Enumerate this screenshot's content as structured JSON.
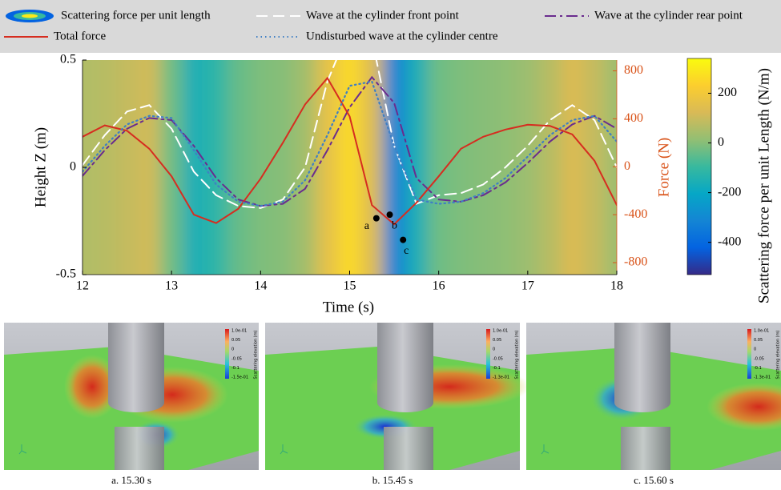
{
  "chart_data": {
    "type": "line",
    "xlabel": "Time (s)",
    "ylabel": "Height Z (m)",
    "y2label": "Force (N)",
    "y2color": "#d95319",
    "legend": "top",
    "x": [
      12,
      12.25,
      12.5,
      12.75,
      13,
      13.25,
      13.5,
      13.75,
      14,
      14.25,
      14.5,
      14.75,
      15,
      15.25,
      15.5,
      15.75,
      16,
      16.25,
      16.5,
      16.75,
      17,
      17.25,
      17.5,
      17.75,
      18
    ],
    "xlim": [
      12,
      18
    ],
    "xticks": [
      12,
      13,
      14,
      15,
      16,
      17,
      18
    ],
    "ylim": [
      -0.5,
      0.5
    ],
    "yticks": [
      -0.5,
      0,
      0.5
    ],
    "y2lim": [
      -900,
      890
    ],
    "y2ticks": [
      -800,
      -400,
      0,
      400,
      800
    ],
    "field": {
      "name": "Scattering force per unit length",
      "label": "Scattering force per unit Length (N/m)",
      "colormap": "parula",
      "values": [
        60,
        70,
        90,
        110,
        -30,
        -160,
        -120,
        -40,
        -10,
        0,
        40,
        160,
        260,
        140,
        -320,
        -160,
        -30,
        -10,
        0,
        10,
        30,
        70,
        130,
        90,
        30
      ],
      "clim": [
        -530,
        340
      ],
      "cticks": [
        -400,
        -200,
        0,
        200
      ]
    },
    "series": [
      {
        "name": "Wave at the cylinder front point",
        "color": "#ffffff",
        "linestyle": "dashed",
        "axis": "y",
        "values": [
          0.01,
          0.15,
          0.26,
          0.29,
          0.18,
          -0.02,
          -0.13,
          -0.18,
          -0.19,
          -0.15,
          0.0,
          0.4,
          0.65,
          0.6,
          0.1,
          -0.17,
          -0.13,
          -0.12,
          -0.08,
          0.0,
          0.1,
          0.22,
          0.29,
          0.22,
          0.0
        ]
      },
      {
        "name": "Wave at the cylinder rear point",
        "color": "#6a2c8e",
        "linestyle": "dashdot",
        "axis": "y",
        "values": [
          -0.04,
          0.08,
          0.18,
          0.23,
          0.22,
          0.1,
          -0.05,
          -0.15,
          -0.18,
          -0.17,
          -0.1,
          0.08,
          0.28,
          0.42,
          0.3,
          -0.05,
          -0.15,
          -0.16,
          -0.13,
          -0.07,
          0.02,
          0.12,
          0.2,
          0.24,
          0.18
        ]
      },
      {
        "name": "Total force",
        "color": "#d62d20",
        "linestyle": "solid",
        "axis": "y2",
        "values": [
          250,
          345,
          300,
          150,
          -80,
          -400,
          -470,
          -350,
          -100,
          200,
          520,
          740,
          420,
          -320,
          -480,
          -300,
          -80,
          150,
          250,
          310,
          350,
          340,
          270,
          50,
          -320
        ]
      },
      {
        "name": "Undisturbed wave at the cylinder centre",
        "color": "#3f7fc4",
        "linestyle": "dotted",
        "axis": "y",
        "values": [
          -0.02,
          0.1,
          0.2,
          0.24,
          0.23,
          0.08,
          -0.08,
          -0.16,
          -0.18,
          -0.16,
          -0.06,
          0.15,
          0.38,
          0.4,
          0.1,
          -0.15,
          -0.17,
          -0.16,
          -0.12,
          -0.05,
          0.05,
          0.15,
          0.22,
          0.24,
          0.12
        ]
      }
    ],
    "annotations": [
      {
        "label": "a",
        "x": 15.3,
        "y": -430
      },
      {
        "label": "b",
        "x": 15.45,
        "y": -400
      },
      {
        "label": "c",
        "x": 15.6,
        "y": -610
      }
    ]
  },
  "panels": [
    {
      "caption": "a. 15.30 s",
      "colorbar_label": "Scattering elevation (m)",
      "colorbar_ticks": [
        "1.0e-01",
        "0.05",
        "0",
        "-0.05",
        "-0.1",
        "-1.5e-01"
      ]
    },
    {
      "caption": "b. 15.45 s",
      "colorbar_label": "Scattering elevation (m)",
      "colorbar_ticks": [
        "1.0e-01",
        "0.05",
        "0",
        "-0.05",
        "-0.1",
        "-1.3e-01"
      ]
    },
    {
      "caption": "c. 15.60 s",
      "colorbar_label": "Scattering elevation (m)",
      "colorbar_ticks": [
        "1.0e-01",
        "0.05",
        "0",
        "-0.05",
        "-0.1",
        "-1.3e-01"
      ]
    }
  ]
}
